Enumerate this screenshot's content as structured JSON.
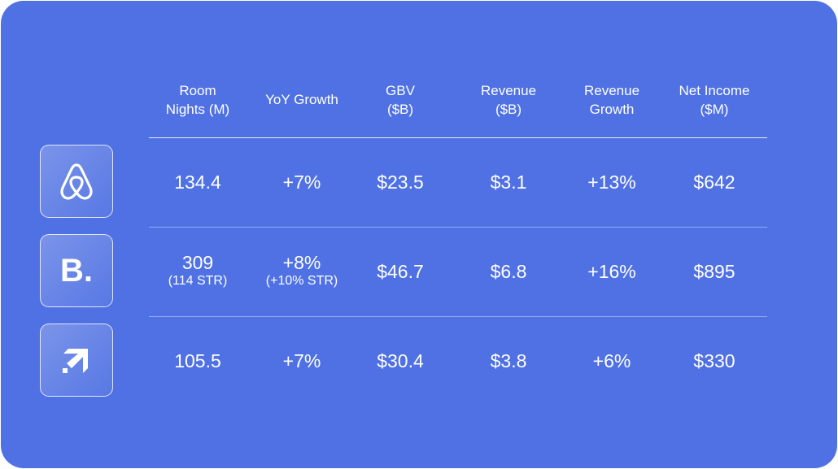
{
  "headers": [
    {
      "line1": "Room",
      "line2": "Nights (M)"
    },
    {
      "line1": "YoY Growth",
      "line2": ""
    },
    {
      "line1": "GBV",
      "line2": "($B)"
    },
    {
      "line1": "Revenue",
      "line2": "($B)"
    },
    {
      "line1": "Revenue",
      "line2": "Growth"
    },
    {
      "line1": "Net Income",
      "line2": "($M)"
    }
  ],
  "rows": [
    {
      "logo": "airbnb-logo-icon",
      "cells": [
        {
          "main": "134.4",
          "sub": ""
        },
        {
          "main": "+7%",
          "sub": ""
        },
        {
          "main": "$23.5",
          "sub": ""
        },
        {
          "main": "$3.1",
          "sub": ""
        },
        {
          "main": "+13%",
          "sub": ""
        },
        {
          "main": "$642",
          "sub": ""
        }
      ]
    },
    {
      "logo": "booking-logo-icon",
      "logo_text": "B.",
      "cells": [
        {
          "main": "309",
          "sub": "(114 STR)"
        },
        {
          "main": "+8%",
          "sub": "(+10% STR)"
        },
        {
          "main": "$46.7",
          "sub": ""
        },
        {
          "main": "$6.8",
          "sub": ""
        },
        {
          "main": "+16%",
          "sub": ""
        },
        {
          "main": "$895",
          "sub": ""
        }
      ]
    },
    {
      "logo": "expedia-logo-icon",
      "cells": [
        {
          "main": "105.5",
          "sub": ""
        },
        {
          "main": "+7%",
          "sub": ""
        },
        {
          "main": "$30.4",
          "sub": ""
        },
        {
          "main": "$3.8",
          "sub": ""
        },
        {
          "main": "+6%",
          "sub": ""
        },
        {
          "main": "$330",
          "sub": ""
        }
      ]
    }
  ],
  "colors": {
    "background": "#4f71e3",
    "text": "#ffffff"
  }
}
